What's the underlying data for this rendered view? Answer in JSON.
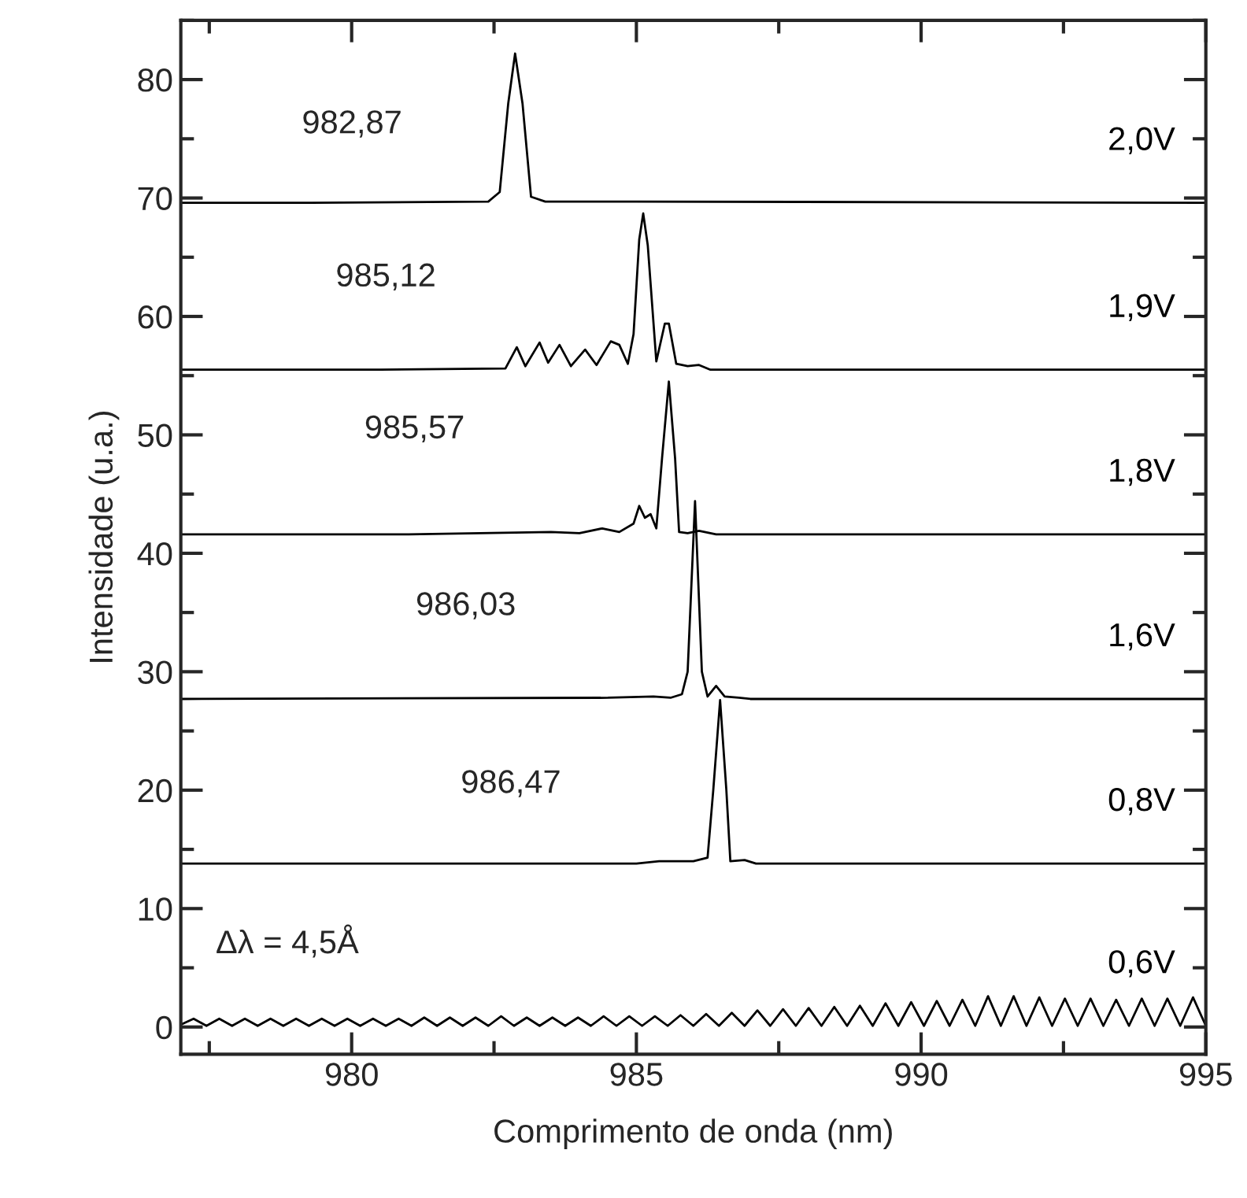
{
  "chart_data": {
    "type": "line",
    "xlabel": "Comprimento de onda (nm)",
    "ylabel": "Intensidade (u.a.)",
    "xlim": [
      977,
      995
    ],
    "xticks": [
      980,
      985,
      990,
      995
    ],
    "ylim": [
      -2.3,
      85
    ],
    "yticks": [
      0,
      10,
      20,
      30,
      40,
      50,
      60,
      70,
      80
    ],
    "grid": false,
    "legend": false,
    "marker": "none",
    "line_style": "solid",
    "series": [
      {
        "name": "2,0V",
        "color": "#000000",
        "x": [
          977,
          979.3,
          982.4,
          982.6,
          982.75,
          982.87,
          983.0,
          983.15,
          983.4,
          985.0,
          995
        ],
        "values": [
          69.6,
          69.6,
          69.7,
          70.5,
          78,
          82.2,
          78,
          70.1,
          69.7,
          69.7,
          69.6
        ]
      },
      {
        "name": "1,9V",
        "color": "#000000",
        "x": [
          977,
          980.5,
          982.7,
          982.9,
          983.05,
          983.3,
          983.45,
          983.65,
          983.85,
          984.1,
          984.3,
          984.55,
          984.7,
          984.85,
          984.95,
          985.05,
          985.12,
          985.2,
          985.35,
          985.5,
          985.57,
          985.7,
          985.9,
          986.1,
          986.3,
          988.0,
          995
        ],
        "values": [
          55.5,
          55.5,
          55.6,
          57.4,
          55.8,
          57.8,
          56.1,
          57.6,
          55.8,
          57.2,
          55.9,
          57.9,
          57.6,
          56.0,
          58.5,
          66.5,
          68.7,
          66.0,
          56.2,
          59.4,
          59.4,
          56.0,
          55.8,
          55.9,
          55.5,
          55.5,
          55.5
        ]
      },
      {
        "name": "1,8V",
        "color": "#000000",
        "x": [
          977,
          981,
          983.5,
          984.0,
          984.4,
          984.7,
          984.95,
          985.05,
          985.15,
          985.25,
          985.35,
          985.45,
          985.57,
          985.68,
          985.75,
          985.9,
          986.1,
          986.4,
          987.0,
          995
        ],
        "values": [
          41.6,
          41.6,
          41.8,
          41.7,
          42.1,
          41.8,
          42.5,
          44.0,
          43.0,
          43.3,
          42.1,
          48,
          54.5,
          48,
          41.8,
          41.7,
          41.9,
          41.6,
          41.6,
          41.6
        ]
      },
      {
        "name": "1,6V",
        "color": "#000000",
        "x": [
          977,
          984.5,
          985.3,
          985.6,
          985.8,
          985.9,
          986.03,
          986.15,
          986.25,
          986.4,
          986.55,
          986.8,
          987,
          995
        ],
        "values": [
          27.7,
          27.8,
          27.9,
          27.8,
          28.1,
          30,
          44.4,
          30,
          27.9,
          28.8,
          27.9,
          27.8,
          27.7,
          27.7
        ]
      },
      {
        "name": "0,8V",
        "color": "#000000",
        "x": [
          977,
          985,
          985.4,
          986.0,
          986.25,
          986.35,
          986.47,
          986.58,
          986.65,
          986.9,
          987.1,
          995
        ],
        "values": [
          13.8,
          13.8,
          14.0,
          14.0,
          14.3,
          20,
          27.6,
          20,
          14.0,
          14.1,
          13.8,
          13.8
        ]
      },
      {
        "name": "0,6V",
        "color": "#000000",
        "x": [
          977.0,
          977.225,
          977.45,
          977.675,
          977.9,
          978.125,
          978.35,
          978.575,
          978.8,
          979.025,
          979.25,
          979.475,
          979.7,
          979.925,
          980.15,
          980.375,
          980.6,
          980.825,
          981.05,
          981.275,
          981.5,
          981.725,
          981.95,
          982.175,
          982.4,
          982.625,
          982.85,
          983.075,
          983.3,
          983.525,
          983.75,
          983.975,
          984.2,
          984.425,
          984.65,
          984.875,
          985.1,
          985.325,
          985.55,
          985.775,
          986.0,
          986.225,
          986.45,
          986.675,
          986.9,
          987.125,
          987.35,
          987.575,
          987.8,
          988.025,
          988.25,
          988.475,
          988.7,
          988.925,
          989.15,
          989.375,
          989.6,
          989.825,
          990.05,
          990.275,
          990.5,
          990.725,
          990.95,
          991.175,
          991.4,
          991.625,
          991.85,
          992.075,
          992.3,
          992.525,
          992.75,
          992.975,
          993.2,
          993.425,
          993.65,
          993.875,
          994.1,
          994.325,
          994.55,
          994.775,
          995.0
        ],
        "values": [
          0.2,
          0.7,
          0.1,
          0.7,
          0.1,
          0.7,
          0.1,
          0.7,
          0.1,
          0.7,
          0.1,
          0.7,
          0.1,
          0.7,
          0.1,
          0.7,
          0.1,
          0.7,
          0.1,
          0.8,
          0.1,
          0.8,
          0.1,
          0.8,
          0.1,
          0.9,
          0.1,
          0.8,
          0.1,
          0.8,
          0.1,
          0.8,
          0.1,
          0.9,
          0.1,
          0.9,
          0.1,
          0.9,
          0.1,
          1.0,
          0.1,
          1.1,
          0.1,
          1.2,
          0.1,
          1.4,
          0.1,
          1.5,
          0.1,
          1.6,
          0.1,
          1.7,
          0.1,
          1.8,
          0.1,
          2.0,
          0.1,
          2.1,
          0.1,
          2.2,
          0.1,
          2.3,
          0.1,
          2.6,
          0.1,
          2.6,
          0.1,
          2.5,
          0.1,
          2.4,
          0.1,
          2.4,
          0.1,
          2.3,
          0.1,
          2.4,
          0.1,
          2.4,
          0.1,
          2.5,
          0.1
        ]
      }
    ],
    "annotations": [
      "982,87",
      "985,12",
      "985,57",
      "986,03",
      "986,47",
      "Δλ = 4,5Å"
    ]
  }
}
